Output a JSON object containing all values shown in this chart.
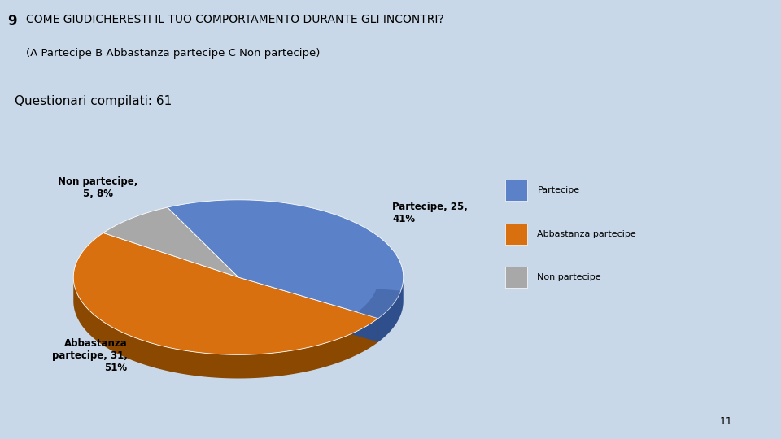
{
  "title_number": "9",
  "title_main": "COME GIUDICHERESTI IL TUO COMPORTAMENTO DURANTE GLI INCONTRI?",
  "title_sub": "(A Partecipe B Abbastanza partecipe C Non partecipe)",
  "subtitle": "Questionari compilati: 61",
  "page_num": "11",
  "background_color": "#C8D8E8",
  "header_color": "#B8CCE0",
  "slices": [
    {
      "label": "Partecipe",
      "n": 25,
      "pct": 41,
      "face": "#5B82C8",
      "side": "#2E4E8C",
      "theta1": -32,
      "theta2": 115.5
    },
    {
      "label": "Non partecipe",
      "n": 5,
      "pct": 8,
      "face": "#A8A8A8",
      "side": "#686868",
      "theta1": 115.5,
      "theta2": 145
    },
    {
      "label": "Abbastanza partecipe",
      "n": 31,
      "pct": 51,
      "face": "#D97010",
      "side": "#8B4800",
      "theta1": 145,
      "theta2": 328
    }
  ],
  "label_data": [
    {
      "text": "Partecipe, 25,\n41%",
      "theta_mid": 41.75,
      "r_scale": 1.25,
      "ha": "left",
      "va": "center"
    },
    {
      "text": "Non partecipe,\n5, 8%",
      "theta_mid": 130.25,
      "r_scale": 1.32,
      "ha": "center",
      "va": "bottom"
    },
    {
      "text": "Abbastanza\npartecipe, 31,\n51%",
      "theta_mid": 236.5,
      "r_scale": 1.22,
      "ha": "right",
      "va": "center"
    }
  ],
  "legend_items": [
    {
      "label": "Partecipe",
      "color": "#5B82C8"
    },
    {
      "label": "Abbastanza partecipe",
      "color": "#D97010"
    },
    {
      "label": "Non partecipe",
      "color": "#A8A8A8"
    }
  ]
}
